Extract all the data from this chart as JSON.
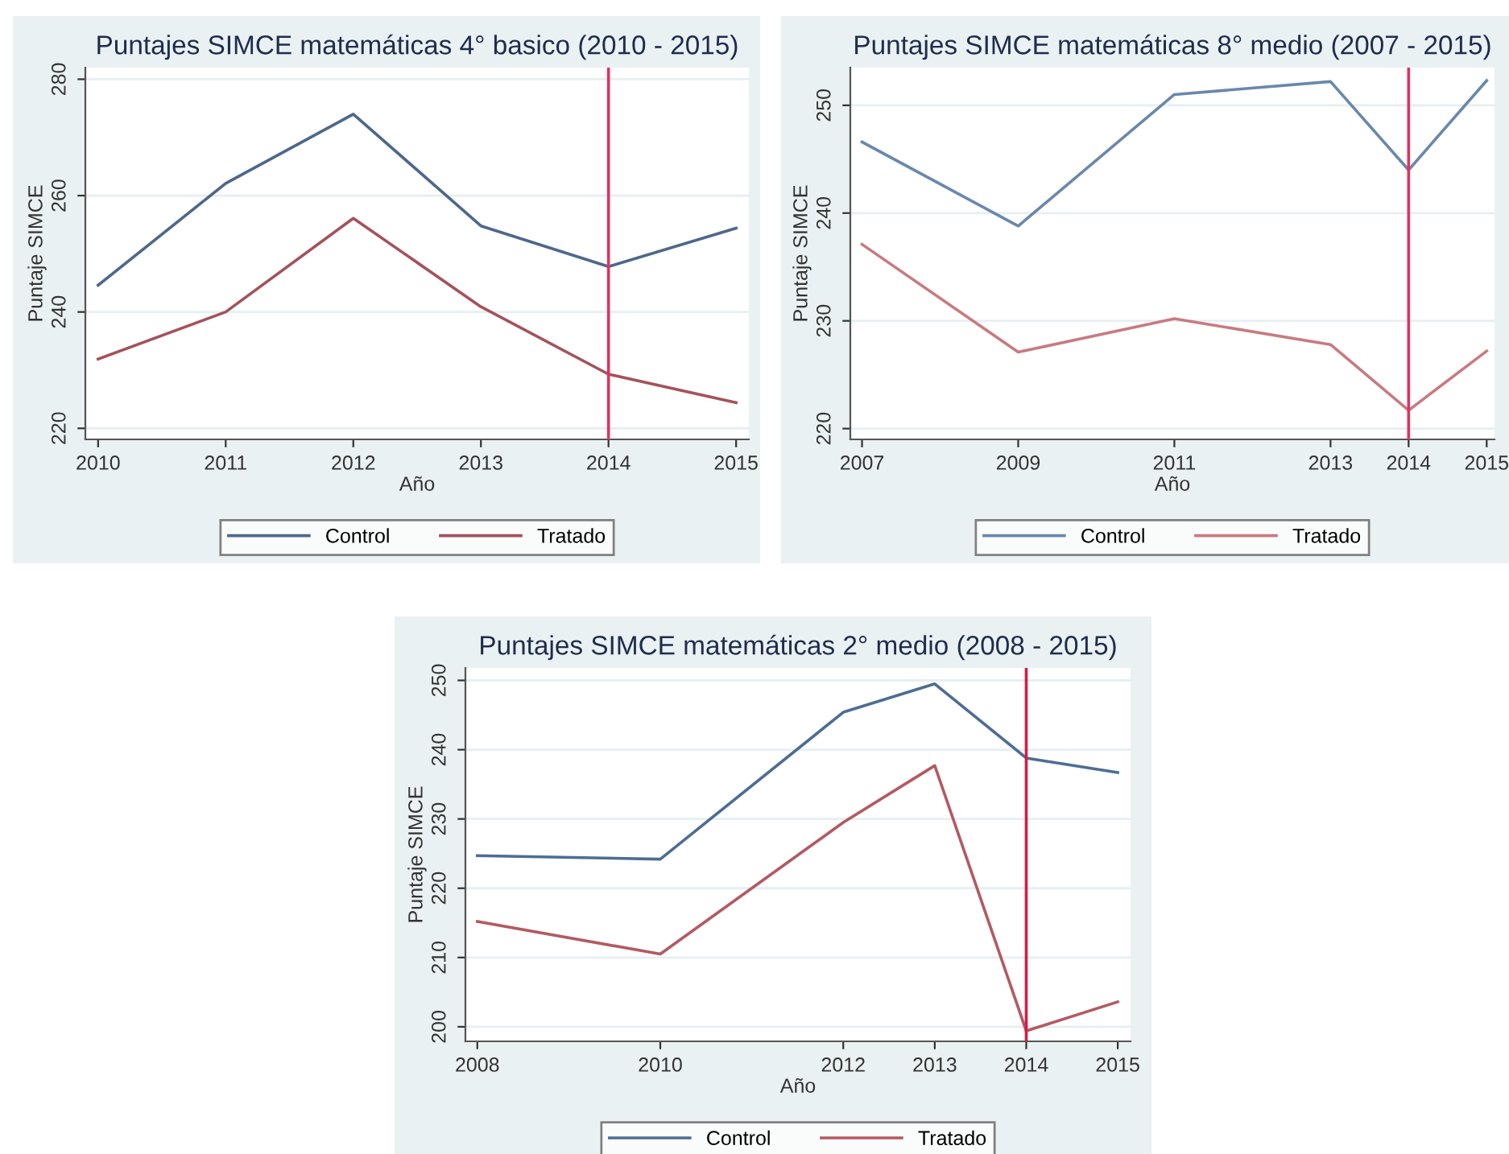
{
  "chart_data": [
    {
      "type": "line",
      "title": "Puntajes SIMCE matemáticas 4° basico (2010 - 2015)",
      "xlabel": "Año",
      "ylabel": "Puntaje SIMCE",
      "x": [
        2010,
        2011,
        2012,
        2013,
        2014,
        2015
      ],
      "series": [
        {
          "name": "Control",
          "color": "#4d6889",
          "values": [
            244.6,
            262.1,
            274.0,
            254.8,
            247.8,
            254.4
          ]
        },
        {
          "name": "Tratado",
          "color": "#a4525c",
          "values": [
            231.9,
            240.0,
            256.1,
            240.9,
            229.3,
            224.4
          ]
        }
      ],
      "xlim": [
        2009.9,
        2015.1
      ],
      "xticks": [
        2010,
        2011,
        2012,
        2013,
        2014,
        2015
      ],
      "ylim": [
        218.1,
        282.0
      ],
      "yticks": [
        220,
        240,
        260,
        280
      ],
      "ref_lines": [
        {
          "axis": "x",
          "value": 2014,
          "color": "#e0325f"
        }
      ],
      "grid": "y",
      "legend": "bottom",
      "marker": "none",
      "line_style": "solid"
    },
    {
      "type": "line",
      "title": "Puntajes SIMCE matemáticas 8° medio (2007 - 2015)",
      "xlabel": "Año",
      "ylabel": "Puntaje SIMCE",
      "x": [
        2007,
        2009,
        2011,
        2013,
        2014,
        2015
      ],
      "series": [
        {
          "name": "Control",
          "color": "#6a88ac",
          "values": [
            246.6,
            238.8,
            251.0,
            252.2,
            244.0,
            252.3
          ]
        },
        {
          "name": "Tratado",
          "color": "#c87a80",
          "values": [
            237.1,
            227.1,
            230.2,
            227.8,
            221.7,
            227.2
          ]
        }
      ],
      "xlim": [
        2006.85,
        2015.1
      ],
      "xticks": [
        2007,
        2009,
        2011,
        2013,
        2014,
        2015
      ],
      "ylim": [
        219.0,
        253.5
      ],
      "yticks": [
        220,
        230,
        240,
        250
      ],
      "ref_lines": [
        {
          "axis": "x",
          "value": 2014,
          "color": "#e0325f"
        }
      ],
      "grid": "y",
      "legend": "bottom",
      "marker": "none",
      "line_style": "solid"
    },
    {
      "type": "line",
      "title": "Puntajes SIMCE matemáticas 2° medio (2008 - 2015)",
      "xlabel": "Año",
      "ylabel": "Puntaje SIMCE",
      "x": [
        2008,
        2010,
        2012,
        2013,
        2014,
        2015
      ],
      "series": [
        {
          "name": "Control",
          "color": "#4d6d93",
          "values": [
            224.7,
            224.2,
            245.4,
            249.5,
            238.8,
            236.7
          ]
        },
        {
          "name": "Tratado",
          "color": "#b35a62",
          "values": [
            215.2,
            210.5,
            229.5,
            237.7,
            199.4,
            203.6
          ]
        }
      ],
      "xlim": [
        2007.87,
        2015.14
      ],
      "xticks": [
        2008,
        2010,
        2012,
        2013,
        2014,
        2015
      ],
      "ylim": [
        197.9,
        251.8
      ],
      "yticks": [
        200,
        210,
        220,
        230,
        240,
        250
      ],
      "ref_lines": [
        {
          "axis": "x",
          "value": 2014,
          "color": "#d41c45"
        }
      ],
      "grid": "y",
      "legend": "bottom",
      "marker": "none",
      "line_style": "solid"
    }
  ]
}
